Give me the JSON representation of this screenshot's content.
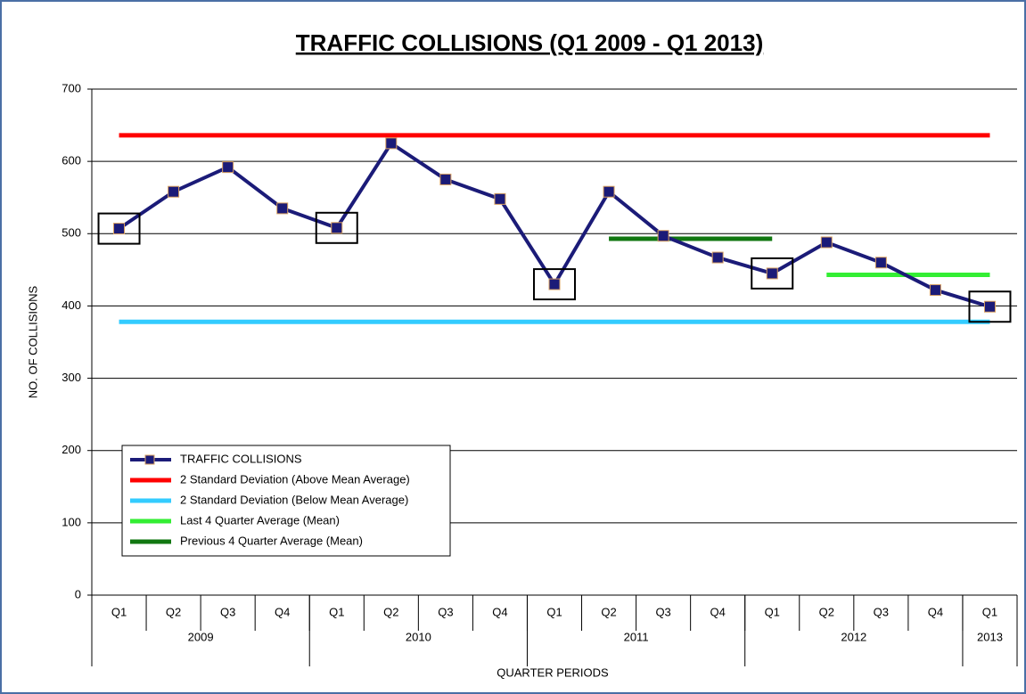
{
  "chart_data": {
    "type": "line",
    "title": "TRAFFIC COLLISIONS (Q1 2009 - Q1 2013)",
    "y_label": "NO. OF  COLLISIONS",
    "x_label": "QUARTER PERIODS",
    "categories": [
      "Q1",
      "Q2",
      "Q3",
      "Q4",
      "Q1",
      "Q2",
      "Q3",
      "Q4",
      "Q1",
      "Q2",
      "Q3",
      "Q4",
      "Q1",
      "Q2",
      "Q3",
      "Q4",
      "Q1"
    ],
    "years": [
      "2009",
      "2009",
      "2009",
      "2009",
      "2010",
      "2010",
      "2010",
      "2010",
      "2011",
      "2011",
      "2011",
      "2011",
      "2012",
      "2012",
      "2012",
      "2012",
      "2013"
    ],
    "series": [
      {
        "name": "TRAFFIC COLLISIONS",
        "color": "#1b1b78",
        "values": [
          507,
          558,
          592,
          535,
          508,
          625,
          575,
          548,
          430,
          558,
          497,
          467,
          445,
          488,
          460,
          422,
          399
        ]
      },
      {
        "name": "2 Standard Deviation (Above Mean Average)",
        "color": "#ff0000",
        "values": [
          636,
          636,
          636,
          636,
          636,
          636,
          636,
          636,
          636,
          636,
          636,
          636,
          636,
          636,
          636,
          636,
          636
        ]
      },
      {
        "name": "2 Standard Deviation (Below Mean Average)",
        "color": "#33ccff",
        "values": [
          378,
          378,
          378,
          378,
          378,
          378,
          378,
          378,
          378,
          378,
          378,
          378,
          378,
          378,
          378,
          378,
          378
        ]
      },
      {
        "name": "Last 4 Quarter Average (Mean)",
        "color": "#33ee33",
        "values": [
          null,
          null,
          null,
          null,
          null,
          null,
          null,
          null,
          null,
          null,
          null,
          null,
          null,
          443,
          443,
          443,
          443
        ]
      },
      {
        "name": "Previous 4 Quarter Average (Mean)",
        "color": "#117711",
        "values": [
          null,
          null,
          null,
          null,
          null,
          null,
          null,
          null,
          null,
          493,
          493,
          493,
          493,
          null,
          null,
          null,
          null
        ]
      }
    ],
    "ylim": [
      0,
      700
    ],
    "yticks": [
      0,
      100,
      200,
      300,
      400,
      500,
      600,
      700
    ],
    "grid": true
  }
}
